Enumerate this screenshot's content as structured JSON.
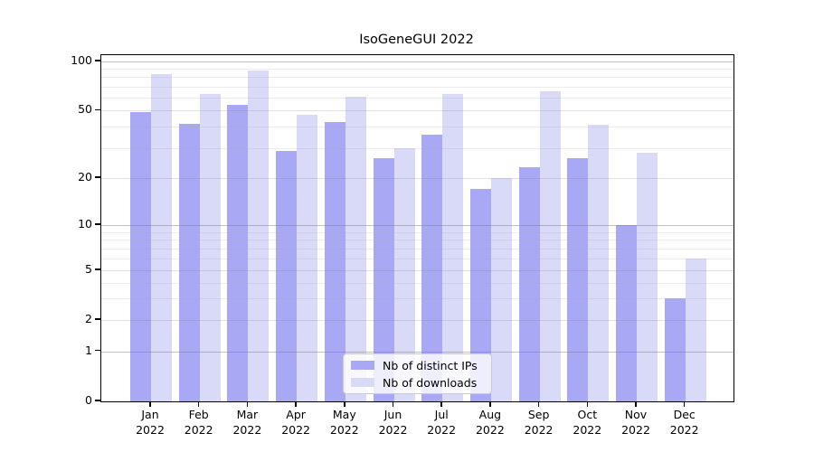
{
  "chart_data": {
    "type": "bar",
    "title": "IsoGeneGUI 2022",
    "xlabel": "",
    "ylabel": "",
    "yscale": "log-like",
    "yticks": [
      0,
      1,
      2,
      5,
      10,
      20,
      50,
      100
    ],
    "ytick_labels": [
      "0",
      "1",
      "2",
      "5",
      "10",
      "20",
      "50",
      "100"
    ],
    "minor_gridline_values": [
      3,
      4,
      6,
      7,
      8,
      9,
      30,
      40,
      60,
      70,
      80,
      90
    ],
    "ylim": [
      0,
      110
    ],
    "grid": true,
    "legend_position": "lower center",
    "categories": [
      {
        "month": "Jan",
        "year": "2022"
      },
      {
        "month": "Feb",
        "year": "2022"
      },
      {
        "month": "Mar",
        "year": "2022"
      },
      {
        "month": "Apr",
        "year": "2022"
      },
      {
        "month": "May",
        "year": "2022"
      },
      {
        "month": "Jun",
        "year": "2022"
      },
      {
        "month": "Jul",
        "year": "2022"
      },
      {
        "month": "Aug",
        "year": "2022"
      },
      {
        "month": "Sep",
        "year": "2022"
      },
      {
        "month": "Oct",
        "year": "2022"
      },
      {
        "month": "Nov",
        "year": "2022"
      },
      {
        "month": "Dec",
        "year": "2022"
      }
    ],
    "series": [
      {
        "name": "Nb of distinct IPs",
        "color": "#a8a8f4",
        "values": [
          49,
          42,
          54,
          29,
          43,
          26,
          36,
          17,
          23,
          26,
          10,
          3
        ]
      },
      {
        "name": "Nb of downloads",
        "color": "#d9d9f8",
        "values": [
          83,
          63,
          88,
          47,
          61,
          30,
          63,
          20,
          66,
          41,
          28,
          6
        ]
      }
    ]
  }
}
